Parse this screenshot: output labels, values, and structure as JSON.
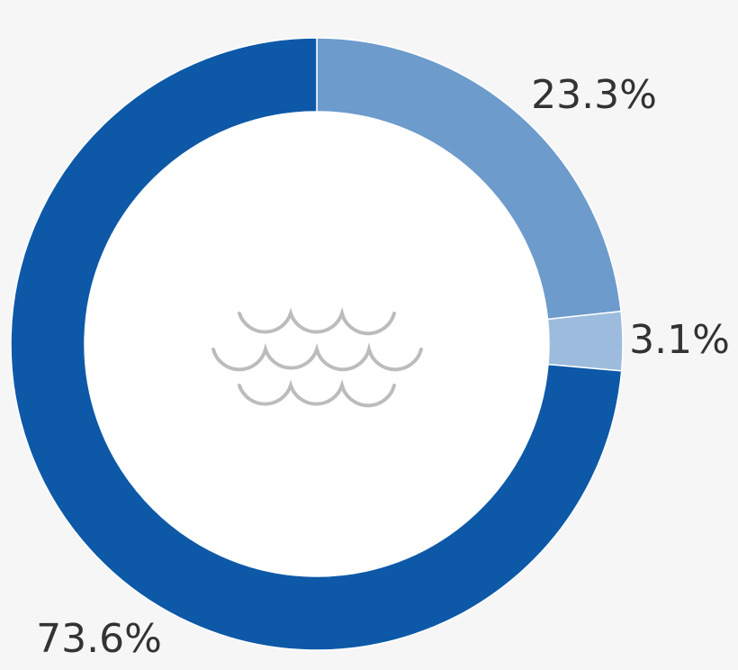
{
  "chart_data": {
    "type": "donut",
    "values": [
      23.3,
      3.1,
      73.6
    ],
    "value_labels": [
      "23.3%",
      "3.1%",
      "73.6%"
    ],
    "colors": [
      "#6d9bcc",
      "#9dbcdd",
      "#0d59a8"
    ]
  }
}
